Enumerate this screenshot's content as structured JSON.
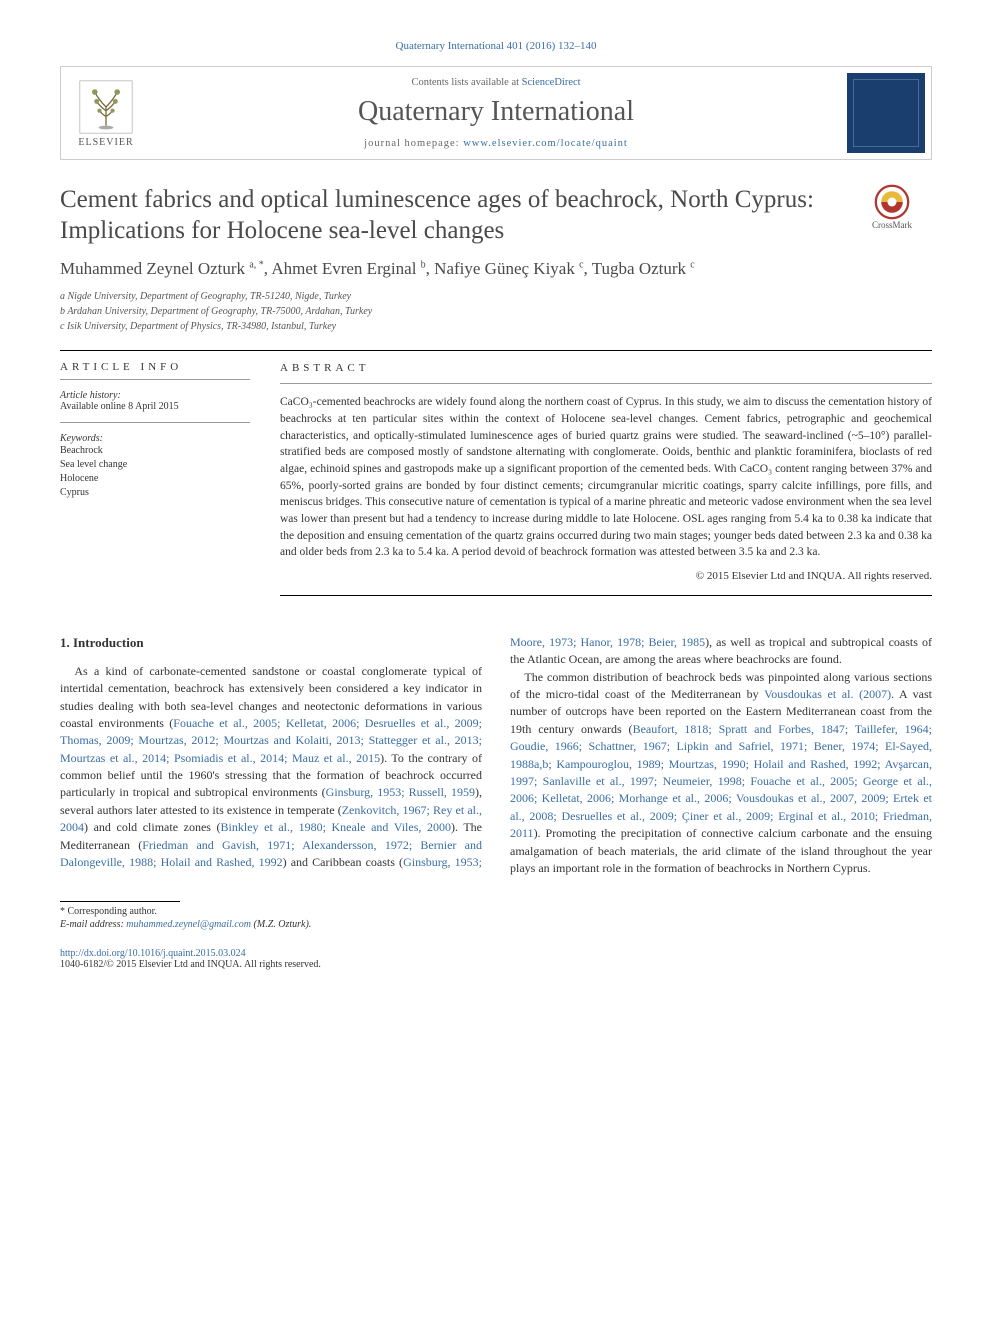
{
  "citation": "Quaternary International 401 (2016) 132–140",
  "header": {
    "contents_prefix": "Contents lists available at ",
    "contents_link": "ScienceDirect",
    "journal": "Quaternary International",
    "homepage_prefix": "journal homepage: ",
    "homepage_url": "www.elsevier.com/locate/quaint",
    "publisher_brand": "ELSEVIER"
  },
  "crossmark_label": "CrossMark",
  "title": "Cement fabrics and optical luminescence ages of beachrock, North Cyprus: Implications for Holocene sea-level changes",
  "authors_html": "Muhammed Zeynel Ozturk <sup>a, *</sup>, Ahmet Evren Erginal <sup>b</sup>, Nafiye Güneç Kiyak <sup>c</sup>, Tugba Ozturk <sup>c</sup>",
  "affiliations": [
    "a Nigde University, Department of Geography, TR-51240, Nigde, Turkey",
    "b Ardahan University, Department of Geography, TR-75000, Ardahan, Turkey",
    "c Isik University, Department of Physics, TR-34980, Istanbul, Turkey"
  ],
  "article_info": {
    "label": "ARTICLE INFO",
    "history_heading": "Article history:",
    "history_line": "Available online 8 April 2015",
    "keywords_heading": "Keywords:",
    "keywords": [
      "Beachrock",
      "Sea level change",
      "Holocene",
      "Cyprus"
    ]
  },
  "abstract": {
    "label": "ABSTRACT",
    "text": "CaCO₃-cemented beachrocks are widely found along the northern coast of Cyprus. In this study, we aim to discuss the cementation history of beachrocks at ten particular sites within the context of Holocene sea-level changes. Cement fabrics, petrographic and geochemical characteristics, and optically-stimulated luminescence ages of buried quartz grains were studied. The seaward-inclined (~5–10°) parallel-stratified beds are composed mostly of sandstone alternating with conglomerate. Ooids, benthic and planktic foraminifera, bioclasts of red algae, echinoid spines and gastropods make up a significant proportion of the cemented beds. With CaCO₃ content ranging between 37% and 65%, poorly-sorted grains are bonded by four distinct cements; circumgranular micritic coatings, sparry calcite infillings, pore fills, and meniscus bridges. This consecutive nature of cementation is typical of a marine phreatic and meteoric vadose environment when the sea level was lower than present but had a tendency to increase during middle to late Holocene. OSL ages ranging from 5.4 ka to 0.38 ka indicate that the deposition and ensuing cementation of the quartz grains occurred during two main stages; younger beds dated between 2.3 ka and 0.38 ka and older beds from 2.3 ka to 5.4 ka. A period devoid of beachrock formation was attested between 3.5 ka and 2.3 ka.",
    "copyright": "© 2015 Elsevier Ltd and INQUA. All rights reserved."
  },
  "body": {
    "heading": "1. Introduction",
    "p1_a": "As a kind of carbonate-cemented sandstone or coastal conglomerate typical of intertidal cementation, beachrock has extensively been considered a key indicator in studies dealing with both sea-level changes and neotectonic deformations in various coastal environments (",
    "p1_cite1": "Fouache et al., 2005; Kelletat, 2006; Desruelles et al., 2009; Thomas, 2009; Mourtzas, 2012; Mourtzas and Kolaiti, 2013; Stattegger et al., 2013; Mourtzas et al., 2014; Psomiadis et al., 2014; Mauz et al., 2015",
    "p1_b": "). To the contrary of common belief until the 1960's stressing that the formation of beachrock occurred particularly in tropical and subtropical environments (",
    "p1_cite2": "Ginsburg, 1953; Russell, 1959",
    "p1_c": "), several authors later attested to its existence in temperate (",
    "p1_cite3": "Zenkovitch, 1967; Rey et al., 2004",
    "p1_d": ") and cold climate zones (",
    "p1_cite4": "Binkley et al., 1980; Kneale and Viles, 2000",
    "p1_e": "). The Mediterranean (",
    "p1_cite5": "Friedman and Gavish, 1971; Alexandersson, 1972; ",
    "p1_cite5b": "Bernier and Dalongeville, 1988; Holail and Rashed, 1992",
    "p1_f": ") and Caribbean coasts (",
    "p1_cite6": "Ginsburg, 1953; Moore, 1973; Hanor, 1978; Beier, 1985",
    "p1_g": "), as well as tropical and subtropical coasts of the Atlantic Ocean, are among the areas where beachrocks are found.",
    "p2_a": "The common distribution of beachrock beds was pinpointed along various sections of the micro-tidal coast of the Mediterranean by ",
    "p2_cite1": "Vousdoukas et al. (2007)",
    "p2_b": ". A vast number of outcrops have been reported on the Eastern Mediterranean coast from the 19th century onwards (",
    "p2_cite2": "Beaufort, 1818; Spratt and Forbes, 1847; Taillefer, 1964; Goudie, 1966; Schattner, 1967; Lipkin and Safriel, 1971; Bener, 1974; El-Sayed, 1988a,b; Kampouroglou, 1989; Mourtzas, 1990; Holail and Rashed, 1992; Avşarcan, 1997; Sanlaville et al., 1997; Neumeier, 1998; Fouache et al., 2005; George et al., 2006; Kelletat, 2006; Morhange et al., 2006; Vousdoukas et al., 2007, 2009; Ertek et al., 2008; Desruelles et al., 2009; Çiner et al., 2009; Erginal et al., 2010; Friedman, 2011",
    "p2_c": "). Promoting the precipitation of connective calcium carbonate and the ensuing amalgamation of beach materials, the arid climate of the island throughout the year plays an important role in the formation of beachrocks in Northern Cyprus."
  },
  "footer": {
    "corr": "* Corresponding author.",
    "email_label": "E-mail address: ",
    "email": "muhammed.zeynel@gmail.com",
    "email_author": " (M.Z. Ozturk).",
    "doi_url": "http://dx.doi.org/10.1016/j.quaint.2015.03.024",
    "issn_line": "1040-6182/© 2015 Elsevier Ltd and INQUA. All rights reserved."
  },
  "colors": {
    "link": "#3a6ea5",
    "text": "#333333",
    "heading": "#4a4a4a",
    "cover_bg": "#1a3e6e"
  }
}
